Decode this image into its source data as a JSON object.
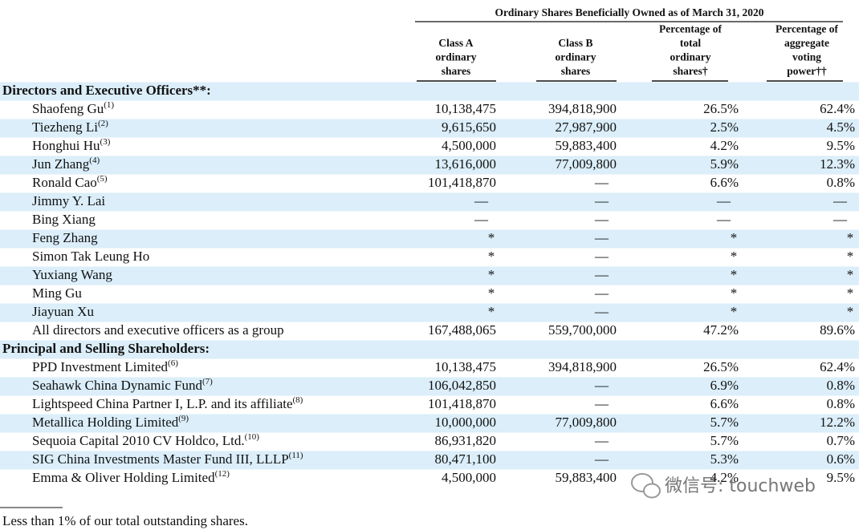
{
  "table": {
    "title": "Ordinary Shares Beneficially Owned as of March 31, 2020",
    "columns": [
      [
        "Class A",
        "ordinary",
        "shares"
      ],
      [
        "Class B",
        "ordinary",
        "shares"
      ],
      [
        "Percentage of",
        "total",
        "ordinary",
        "shares†"
      ],
      [
        "Percentage of",
        "aggregate",
        "voting",
        "power††"
      ]
    ],
    "rows": [
      {
        "section": "Directors and Executive Officers**:"
      },
      {
        "name": "Shaofeng Gu",
        "note": "(1)",
        "cells": [
          "10,138,475",
          "394,818,900",
          "26.5%",
          "62.4%"
        ]
      },
      {
        "name": "Tiezheng Li",
        "note": "(2)",
        "cells": [
          "9,615,650",
          "27,987,900",
          "2.5%",
          "4.5%"
        ]
      },
      {
        "name": "Honghui Hu",
        "note": "(3)",
        "cells": [
          "4,500,000",
          "59,883,400",
          "4.2%",
          "9.5%"
        ]
      },
      {
        "name": "Jun Zhang",
        "note": "(4)",
        "cells": [
          "13,616,000",
          "77,009,800",
          "5.9%",
          "12.3%"
        ]
      },
      {
        "name": "Ronald Cao",
        "note": "(5)",
        "cells": [
          "101,418,870",
          "—",
          "6.6%",
          "0.8%"
        ]
      },
      {
        "name": "Jimmy Y. Lai",
        "cells": [
          "—",
          "—",
          "—",
          "—"
        ]
      },
      {
        "name": "Bing Xiang",
        "cells": [
          "—",
          "—",
          "—",
          "—"
        ]
      },
      {
        "name": "Feng Zhang",
        "cells": [
          "*",
          "—",
          "*",
          "*"
        ]
      },
      {
        "name": "Simon Tak Leung Ho",
        "cells": [
          "*",
          "—",
          "*",
          "*"
        ]
      },
      {
        "name": "Yuxiang Wang",
        "cells": [
          "*",
          "—",
          "*",
          "*"
        ]
      },
      {
        "name": "Ming Gu",
        "cells": [
          "*",
          "—",
          "*",
          "*"
        ]
      },
      {
        "name": "Jiayuan Xu",
        "cells": [
          "*",
          "—",
          "*",
          "*"
        ]
      },
      {
        "name": "All directors and executive officers as a group",
        "cells": [
          "167,488,065",
          "559,700,000",
          "47.2%",
          "89.6%"
        ]
      },
      {
        "section": "Principal and Selling Shareholders:"
      },
      {
        "name": "PPD Investment Limited",
        "note": "(6)",
        "cells": [
          "10,138,475",
          "394,818,900",
          "26.5%",
          "62.4%"
        ]
      },
      {
        "name": "Seahawk China Dynamic Fund",
        "note": "(7)",
        "cells": [
          "106,042,850",
          "—",
          "6.9%",
          "0.8%"
        ]
      },
      {
        "name": "Lightspeed China Partner I, L.P. and its affiliate",
        "note": "(8)",
        "cells": [
          "101,418,870",
          "—",
          "6.6%",
          "0.8%"
        ]
      },
      {
        "name": "Metallica Holding Limited",
        "note": "(9)",
        "cells": [
          "10,000,000",
          "77,009,800",
          "5.7%",
          "12.2%"
        ]
      },
      {
        "name": "Sequoia Capital 2010 CV Holdco, Ltd.",
        "note": "(10)",
        "cells": [
          "86,931,820",
          "—",
          "5.7%",
          "0.7%"
        ]
      },
      {
        "name": "SIG China Investments Master Fund III, LLLP",
        "note": "(11)",
        "cells": [
          "80,471,100",
          "—",
          "5.3%",
          "0.6%"
        ]
      },
      {
        "name": "Emma & Oliver Holding Limited",
        "note": "(12)",
        "cells": [
          "4,500,000",
          "59,883,400",
          "4.2%",
          "9.5%"
        ]
      }
    ],
    "footnote": "Less than 1% of our total outstanding shares.",
    "watermark": "微信号: touchweb"
  }
}
